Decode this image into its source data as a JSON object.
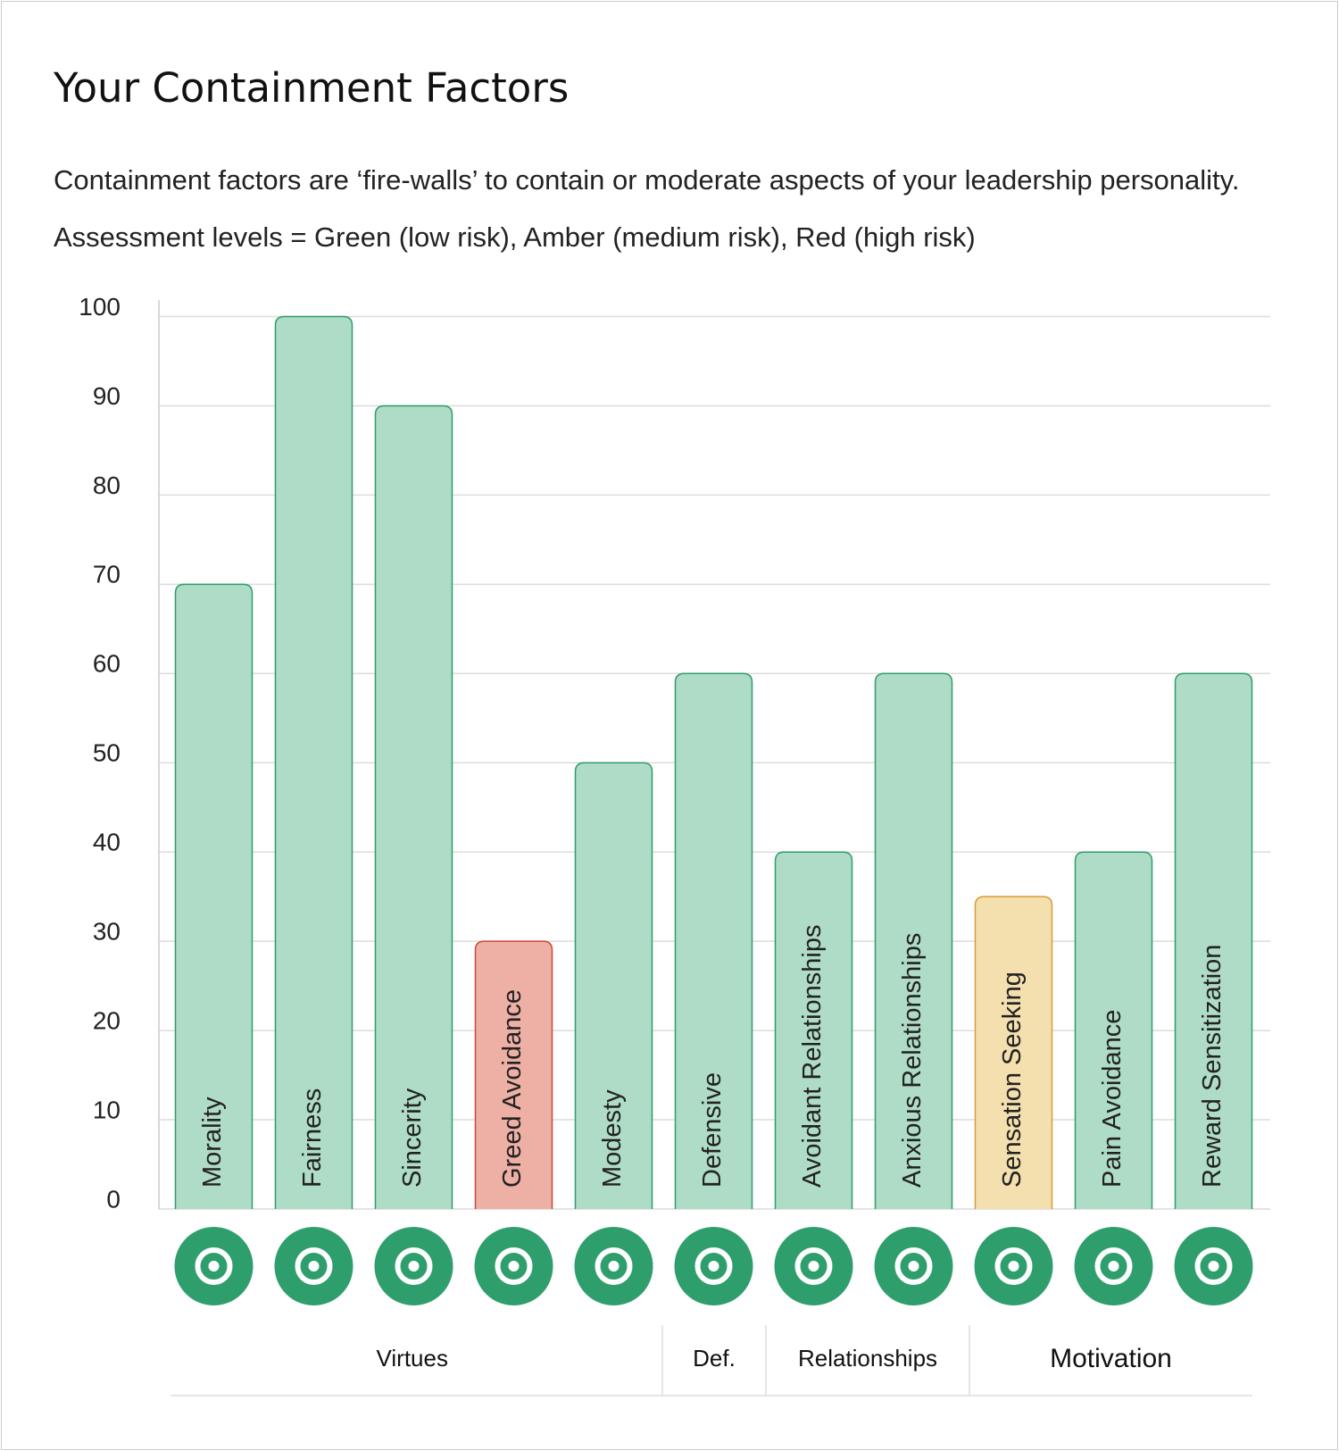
{
  "chart_data": {
    "type": "bar",
    "title": "Your Containment Factors",
    "subtitle": "Containment factors are ‘fire-walls’ to contain or moderate aspects of your leadership personality. Assessment levels = Green (low risk), Amber (medium risk), Red (high risk)",
    "categories": [
      "Morality",
      "Fairness",
      "Sincerity",
      "Greed Avoidance",
      "Modesty",
      "Defensive",
      "Avoidant Relationships",
      "Anxious Relationships",
      "Sensation Seeking",
      "Pain Avoidance",
      "Reward Sensitization"
    ],
    "values": [
      70,
      100,
      90,
      30,
      50,
      60,
      40,
      60,
      35,
      40,
      60
    ],
    "colors": [
      "#afdcc6",
      "#afdcc6",
      "#afdcc6",
      "#eeb0a5",
      "#afdcc6",
      "#afdcc6",
      "#afdcc6",
      "#afdcc6",
      "#f4dfae",
      "#afdcc6",
      "#afdcc6"
    ],
    "groups": [
      "Virtues",
      "Def.",
      "Relationships",
      "Motivation"
    ],
    "ylim": [
      0,
      100
    ],
    "yticks": [
      0,
      10,
      20,
      30,
      40,
      50,
      60,
      70,
      80,
      90,
      100
    ],
    "grid": true
  }
}
